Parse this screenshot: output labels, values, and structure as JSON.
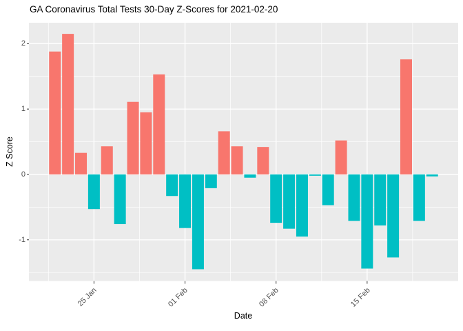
{
  "title": "GA Coronavirus Total Tests 30-Day Z-Scores for 2021-02-20",
  "axes": {
    "x_label": "Date",
    "y_label": "Z Score"
  },
  "chart_data": {
    "type": "bar",
    "title": "GA Coronavirus Total Tests 30-Day Z-Scores for 2021-02-20",
    "xlabel": "Date",
    "ylabel": "Z Score",
    "ylim": [
      -1.63,
      2.32
    ],
    "y_major_ticks": [
      2,
      1,
      0,
      -1
    ],
    "y_tick_labels": [
      "2",
      "1",
      "0",
      "-1"
    ],
    "y_minor_ticks": [
      1.5,
      0.5,
      -0.5,
      -1.5
    ],
    "x_ticks": [
      {
        "label": "25 Jan",
        "date": "2021-01-25"
      },
      {
        "label": "01 Feb",
        "date": "2021-02-01"
      },
      {
        "label": "08 Feb",
        "date": "2021-02-08"
      },
      {
        "label": "15 Feb",
        "date": "2021-02-15"
      }
    ],
    "grid": true,
    "legend_position": "none",
    "dates": [
      "2021-01-22",
      "2021-01-23",
      "2021-01-24",
      "2021-01-25",
      "2021-01-26",
      "2021-01-27",
      "2021-01-28",
      "2021-01-29",
      "2021-01-30",
      "2021-01-31",
      "2021-02-01",
      "2021-02-02",
      "2021-02-03",
      "2021-02-04",
      "2021-02-05",
      "2021-02-06",
      "2021-02-07",
      "2021-02-08",
      "2021-02-09",
      "2021-02-10",
      "2021-02-11",
      "2021-02-12",
      "2021-02-13",
      "2021-02-14",
      "2021-02-15",
      "2021-02-16",
      "2021-02-17",
      "2021-02-18",
      "2021-02-19",
      "2021-02-20"
    ],
    "values": [
      1.88,
      2.15,
      0.33,
      -0.53,
      0.43,
      -0.76,
      1.11,
      0.95,
      1.53,
      -0.33,
      -0.82,
      -1.45,
      -0.21,
      0.66,
      0.43,
      -0.05,
      0.42,
      -0.74,
      -0.83,
      -0.95,
      -0.02,
      -0.47,
      0.52,
      -0.71,
      -1.44,
      -0.78,
      -1.27,
      1.76,
      -0.71,
      -0.03
    ],
    "colors": {
      "positive": "#F8766D",
      "negative": "#00BFC4",
      "panel_bg": "#EBEBEB",
      "grid": "#FFFFFF",
      "tick_mark": "#333333",
      "tick_text": "#4D4D4D",
      "text": "#000000"
    }
  }
}
